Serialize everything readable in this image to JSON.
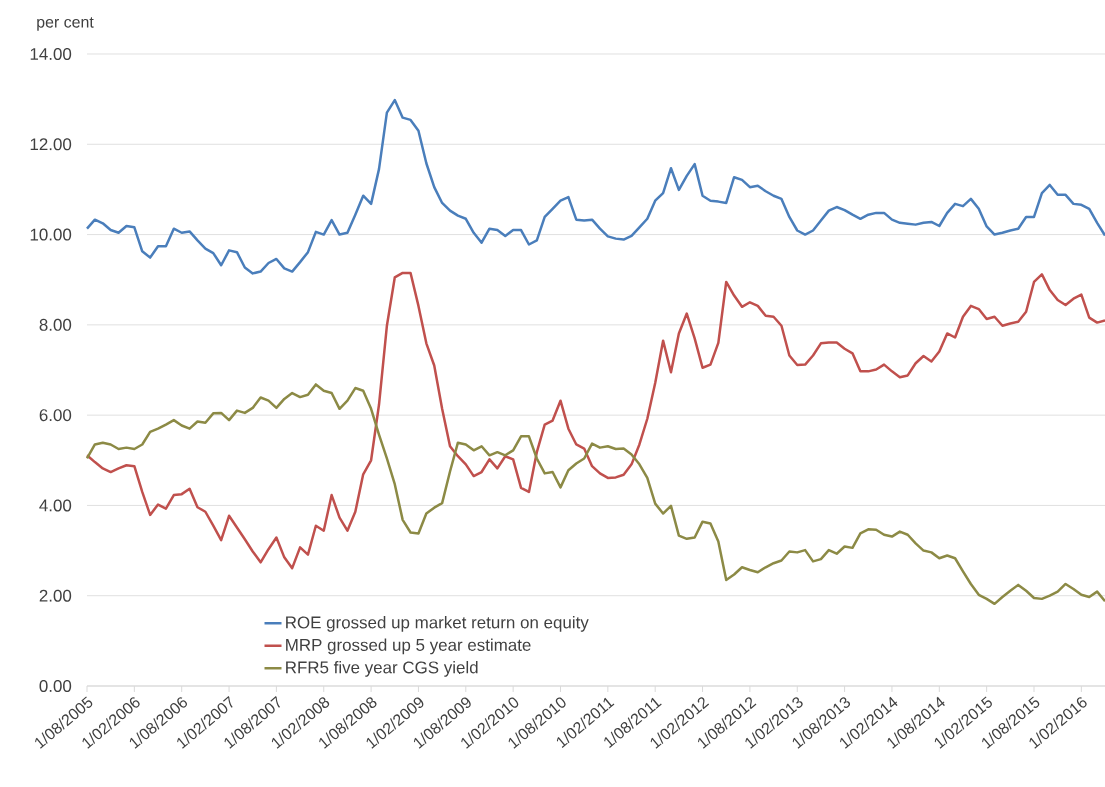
{
  "chart_data": {
    "type": "line",
    "ylabel": "per cent",
    "x": [
      "2005-08",
      "2005-09",
      "2005-10",
      "2005-11",
      "2005-12",
      "2006-01",
      "2006-02",
      "2006-03",
      "2006-04",
      "2006-05",
      "2006-06",
      "2006-07",
      "2006-08",
      "2006-09",
      "2006-10",
      "2006-11",
      "2006-12",
      "2007-01",
      "2007-02",
      "2007-03",
      "2007-04",
      "2007-05",
      "2007-06",
      "2007-07",
      "2007-08",
      "2007-09",
      "2007-10",
      "2007-11",
      "2007-12",
      "2008-01",
      "2008-02",
      "2008-03",
      "2008-04",
      "2008-05",
      "2008-06",
      "2008-07",
      "2008-08",
      "2008-09",
      "2008-10",
      "2008-11",
      "2008-12",
      "2009-01",
      "2009-02",
      "2009-03",
      "2009-04",
      "2009-05",
      "2009-06",
      "2009-07",
      "2009-08",
      "2009-09",
      "2009-10",
      "2009-11",
      "2009-12",
      "2010-01",
      "2010-02",
      "2010-03",
      "2010-04",
      "2010-05",
      "2010-06",
      "2010-07",
      "2010-08",
      "2010-09",
      "2010-10",
      "2010-11",
      "2010-12",
      "2011-01",
      "2011-02",
      "2011-03",
      "2011-04",
      "2011-05",
      "2011-06",
      "2011-07",
      "2011-08",
      "2011-09",
      "2011-10",
      "2011-11",
      "2011-12",
      "2012-01",
      "2012-02",
      "2012-03",
      "2012-04",
      "2012-05",
      "2012-06",
      "2012-07",
      "2012-08",
      "2012-09",
      "2012-10",
      "2012-11",
      "2012-12",
      "2013-01",
      "2013-02",
      "2013-03",
      "2013-04",
      "2013-05",
      "2013-06",
      "2013-07",
      "2013-08",
      "2013-09",
      "2013-10",
      "2013-11",
      "2013-12",
      "2014-01",
      "2014-02",
      "2014-03",
      "2014-04",
      "2014-05",
      "2014-06",
      "2014-07",
      "2014-08",
      "2014-09",
      "2014-10",
      "2014-11",
      "2014-12",
      "2015-01",
      "2015-02",
      "2015-03",
      "2015-04",
      "2015-05",
      "2015-06",
      "2015-07",
      "2015-08",
      "2015-09",
      "2015-10",
      "2015-11",
      "2015-12",
      "2016-01",
      "2016-02",
      "2016-03",
      "2016-04",
      "2016-05"
    ],
    "series": [
      {
        "name": "ROE grossed up market return on equity",
        "color": "#4a7ebb",
        "values": [
          10.13,
          10.33,
          10.25,
          10.1,
          10.04,
          10.19,
          10.16,
          9.63,
          9.49,
          9.74,
          9.74,
          10.13,
          10.04,
          10.07,
          9.87,
          9.69,
          9.59,
          9.32,
          9.65,
          9.61,
          9.27,
          9.14,
          9.18,
          9.37,
          9.46,
          9.25,
          9.18,
          9.39,
          9.61,
          10.06,
          10.0,
          10.32,
          10.0,
          10.04,
          10.44,
          10.86,
          10.68,
          11.45,
          12.7,
          12.98,
          12.59,
          12.54,
          12.3,
          11.58,
          11.05,
          10.7,
          10.53,
          10.42,
          10.35,
          10.04,
          9.82,
          10.13,
          10.1,
          9.97,
          10.1,
          10.1,
          9.78,
          9.87,
          10.39,
          10.57,
          10.75,
          10.83,
          10.33,
          10.31,
          10.33,
          10.13,
          9.96,
          9.91,
          9.89,
          9.97,
          10.16,
          10.35,
          10.75,
          10.92,
          11.47,
          10.99,
          11.3,
          11.56,
          10.86,
          10.75,
          10.73,
          10.7,
          11.27,
          11.21,
          11.05,
          11.08,
          10.96,
          10.86,
          10.79,
          10.39,
          10.09,
          10.0,
          10.09,
          10.31,
          10.53,
          10.61,
          10.54,
          10.44,
          10.35,
          10.44,
          10.48,
          10.48,
          10.33,
          10.26,
          10.24,
          10.22,
          10.26,
          10.28,
          10.19,
          10.48,
          10.68,
          10.63,
          10.79,
          10.57,
          10.18,
          10.0,
          10.04,
          10.09,
          10.13,
          10.39,
          10.39,
          10.92,
          11.1,
          10.88,
          10.88,
          10.68,
          10.66,
          10.57,
          10.26,
          9.98
        ]
      },
      {
        "name": "MRP grossed up 5 year estimate",
        "color": "#c0504d",
        "values": [
          5.11,
          4.96,
          4.82,
          4.74,
          4.82,
          4.89,
          4.87,
          4.3,
          3.79,
          4.02,
          3.93,
          4.23,
          4.25,
          4.37,
          3.96,
          3.86,
          3.55,
          3.23,
          3.77,
          3.51,
          3.25,
          2.98,
          2.74,
          3.03,
          3.29,
          2.85,
          2.61,
          3.07,
          2.91,
          3.55,
          3.44,
          4.23,
          3.73,
          3.44,
          3.86,
          4.69,
          5.0,
          6.23,
          7.98,
          9.05,
          9.15,
          9.15,
          8.42,
          7.59,
          7.1,
          6.14,
          5.31,
          5.09,
          4.91,
          4.65,
          4.74,
          5.02,
          4.82,
          5.09,
          5.02,
          4.39,
          4.3,
          5.18,
          5.79,
          5.88,
          6.32,
          5.7,
          5.35,
          5.26,
          4.87,
          4.71,
          4.61,
          4.62,
          4.68,
          4.91,
          5.35,
          5.92,
          6.71,
          7.65,
          6.95,
          7.81,
          8.25,
          7.7,
          7.05,
          7.12,
          7.6,
          8.95,
          8.65,
          8.4,
          8.5,
          8.42,
          8.2,
          8.18,
          7.98,
          7.32,
          7.11,
          7.12,
          7.32,
          7.59,
          7.61,
          7.61,
          7.47,
          7.37,
          6.97,
          6.97,
          7.01,
          7.12,
          6.97,
          6.84,
          6.88,
          7.15,
          7.31,
          7.19,
          7.41,
          7.81,
          7.72,
          8.18,
          8.42,
          8.35,
          8.13,
          8.18,
          7.98,
          8.03,
          8.07,
          8.29,
          8.95,
          9.12,
          8.77,
          8.55,
          8.44,
          8.58,
          8.67,
          8.16,
          8.05,
          8.1
        ]
      },
      {
        "name": "RFR5 five year CGS yield",
        "color": "#8c8a45",
        "values": [
          5.04,
          5.35,
          5.39,
          5.35,
          5.25,
          5.28,
          5.25,
          5.35,
          5.63,
          5.7,
          5.79,
          5.89,
          5.77,
          5.7,
          5.86,
          5.83,
          6.04,
          6.05,
          5.89,
          6.1,
          6.05,
          6.16,
          6.39,
          6.32,
          6.16,
          6.36,
          6.49,
          6.4,
          6.45,
          6.68,
          6.54,
          6.49,
          6.14,
          6.32,
          6.6,
          6.54,
          6.14,
          5.57,
          5.04,
          4.47,
          3.68,
          3.4,
          3.38,
          3.82,
          3.95,
          4.05,
          4.75,
          5.39,
          5.35,
          5.22,
          5.31,
          5.11,
          5.18,
          5.11,
          5.22,
          5.53,
          5.53,
          5.04,
          4.71,
          4.74,
          4.4,
          4.78,
          4.93,
          5.04,
          5.37,
          5.28,
          5.31,
          5.25,
          5.26,
          5.13,
          4.91,
          4.61,
          4.04,
          3.82,
          3.99,
          3.33,
          3.26,
          3.29,
          3.64,
          3.6,
          3.2,
          2.35,
          2.47,
          2.63,
          2.57,
          2.52,
          2.63,
          2.72,
          2.78,
          2.98,
          2.96,
          3.01,
          2.76,
          2.81,
          3.01,
          2.93,
          3.09,
          3.06,
          3.38,
          3.47,
          3.46,
          3.35,
          3.31,
          3.42,
          3.35,
          3.16,
          3.0,
          2.96,
          2.83,
          2.89,
          2.83,
          2.54,
          2.26,
          2.02,
          1.93,
          1.82,
          1.97,
          2.11,
          2.24,
          2.11,
          1.95,
          1.93,
          2.0,
          2.09,
          2.26,
          2.15,
          2.02,
          1.97,
          2.09,
          1.88
        ]
      }
    ],
    "xlim": [
      "2005-08",
      "2016-05"
    ],
    "xticks": [
      {
        "value": "2005-08",
        "label": "1/08/2005"
      },
      {
        "value": "2006-02",
        "label": "1/02/2006"
      },
      {
        "value": "2006-08",
        "label": "1/08/2006"
      },
      {
        "value": "2007-02",
        "label": "1/02/2007"
      },
      {
        "value": "2007-08",
        "label": "1/08/2007"
      },
      {
        "value": "2008-02",
        "label": "1/02/2008"
      },
      {
        "value": "2008-08",
        "label": "1/08/2008"
      },
      {
        "value": "2009-02",
        "label": "1/02/2009"
      },
      {
        "value": "2009-08",
        "label": "1/08/2009"
      },
      {
        "value": "2010-02",
        "label": "1/02/2010"
      },
      {
        "value": "2010-08",
        "label": "1/08/2010"
      },
      {
        "value": "2011-02",
        "label": "1/02/2011"
      },
      {
        "value": "2011-08",
        "label": "1/08/2011"
      },
      {
        "value": "2012-02",
        "label": "1/02/2012"
      },
      {
        "value": "2012-08",
        "label": "1/08/2012"
      },
      {
        "value": "2013-02",
        "label": "1/02/2013"
      },
      {
        "value": "2013-08",
        "label": "1/08/2013"
      },
      {
        "value": "2014-02",
        "label": "1/02/2014"
      },
      {
        "value": "2014-08",
        "label": "1/08/2014"
      },
      {
        "value": "2015-02",
        "label": "1/02/2015"
      },
      {
        "value": "2015-08",
        "label": "1/08/2015"
      },
      {
        "value": "2016-02",
        "label": "1/02/2016"
      }
    ],
    "ylim": [
      0,
      14
    ],
    "yticks": [
      {
        "value": 0,
        "label": "0.00"
      },
      {
        "value": 2,
        "label": "2.00"
      },
      {
        "value": 4,
        "label": "4.00"
      },
      {
        "value": 6,
        "label": "6.00"
      },
      {
        "value": 8,
        "label": "8.00"
      },
      {
        "value": 10,
        "label": "10.00"
      },
      {
        "value": 12,
        "label": "12.00"
      },
      {
        "value": 14,
        "label": "14.00"
      }
    ],
    "grid": "y",
    "legend": "bottom",
    "marker": "none",
    "line_style": "solid"
  }
}
